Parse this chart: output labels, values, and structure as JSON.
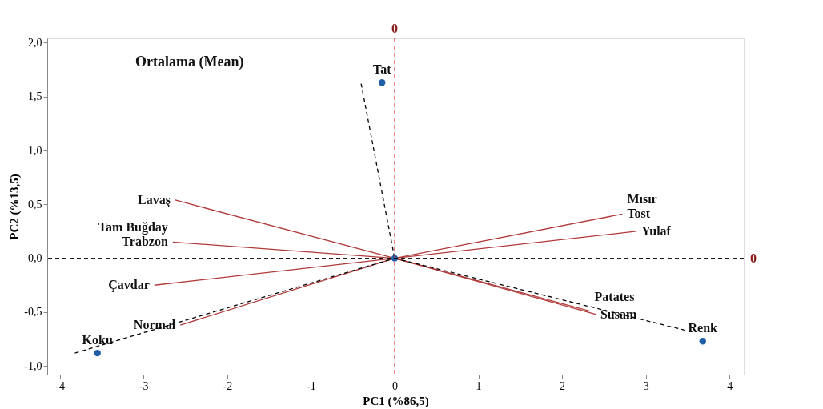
{
  "chart_data": {
    "type": "line",
    "xlabel": "PC1 (%86,5)",
    "ylabel": "PC2 (%13,5)",
    "xlim": [
      -4.15,
      4.17
    ],
    "ylim": [
      -1.08,
      2.04
    ],
    "xticks": [
      -4,
      -3,
      -2,
      -1,
      0,
      1,
      2,
      3,
      4
    ],
    "yticks": [
      {
        "value": -1.0,
        "label": "-1,0"
      },
      {
        "value": -0.5,
        "label": "-0,5"
      },
      {
        "value": 0.0,
        "label": "0,0"
      },
      {
        "value": 0.5,
        "label": "0,5"
      },
      {
        "value": 1.0,
        "label": "1,0"
      },
      {
        "value": 1.5,
        "label": "1,5"
      },
      {
        "value": 2.0,
        "label": "2,0"
      }
    ],
    "grid": false,
    "line_style": "solid",
    "marker": "none",
    "series": [
      {
        "color": "#b03a3a",
        "x": [
          0,
          -2.62
        ],
        "values": [
          0,
          0.54
        ]
      },
      {
        "color": "#b03a3a",
        "x": [
          0,
          -2.65
        ],
        "values": [
          0,
          0.15
        ]
      },
      {
        "color": "#b03a3a",
        "x": [
          0,
          -2.87
        ],
        "values": [
          0,
          -0.25
        ]
      },
      {
        "color": "#b03a3a",
        "x": [
          0,
          -2.56
        ],
        "values": [
          0,
          -0.62
        ]
      },
      {
        "color": "#b03a3a",
        "x": [
          0,
          2.72
        ],
        "values": [
          0,
          0.41
        ]
      },
      {
        "color": "#b03a3a",
        "x": [
          0,
          2.89
        ],
        "values": [
          0,
          0.25
        ]
      },
      {
        "color": "#b03a3a",
        "x": [
          0,
          2.33
        ],
        "values": [
          0,
          -0.49
        ]
      },
      {
        "color": "#b03a3a",
        "x": [
          0,
          2.4
        ],
        "values": [
          0,
          -0.52
        ]
      },
      {
        "color": "#000000",
        "line_style": "dashed",
        "x": [
          0,
          -0.4
        ],
        "values": [
          0,
          1.62
        ]
      },
      {
        "color": "#000000",
        "line_style": "dashed",
        "x": [
          0,
          -3.82
        ],
        "values": [
          0,
          -0.88
        ]
      },
      {
        "color": "#000000",
        "line_style": "dashed",
        "x": [
          0,
          3.48
        ],
        "values": [
          0,
          -0.67
        ]
      },
      {
        "type": "scatter",
        "color": "#1f5fa8",
        "marker": "circle",
        "x": [
          -0.15,
          -3.55,
          3.68,
          0
        ],
        "values": [
          1.63,
          -0.88,
          -0.77,
          0
        ]
      }
    ],
    "ref_lines": [
      {
        "axis": "x",
        "value": 0,
        "label": "0",
        "color": "#e02020",
        "line_style": "dashed"
      },
      {
        "axis": "y",
        "value": 0,
        "label": "0",
        "color": "#000000",
        "line_style": "dashed"
      }
    ],
    "annotations": [
      "Ortalama (Mean)",
      {
        "text": "Lavaş",
        "x": -2.62,
        "y": 0.54
      },
      {
        "text": "Tam Buğday",
        "x": -2.65,
        "y": 0.15
      },
      {
        "text": "Trabzon",
        "x": -2.65,
        "y": 0.15
      },
      {
        "text": "Çavdar",
        "x": -2.87,
        "y": -0.25
      },
      {
        "text": "Normal",
        "x": -2.56,
        "y": -0.62
      },
      {
        "text": "Mısır",
        "x": 2.72,
        "y": 0.41
      },
      {
        "text": "Tost",
        "x": 2.72,
        "y": 0.41
      },
      {
        "text": "Yulaf",
        "x": 2.89,
        "y": 0.25
      },
      {
        "text": "Patates",
        "x": 2.33,
        "y": -0.49
      },
      {
        "text": "Susam",
        "x": 2.4,
        "y": -0.52
      },
      {
        "text": "Tat",
        "x": -0.15,
        "y": 1.63
      },
      {
        "text": "Koku",
        "x": -3.55,
        "y": -0.88
      },
      {
        "text": "Renk",
        "x": 3.68,
        "y": -0.77
      }
    ]
  }
}
